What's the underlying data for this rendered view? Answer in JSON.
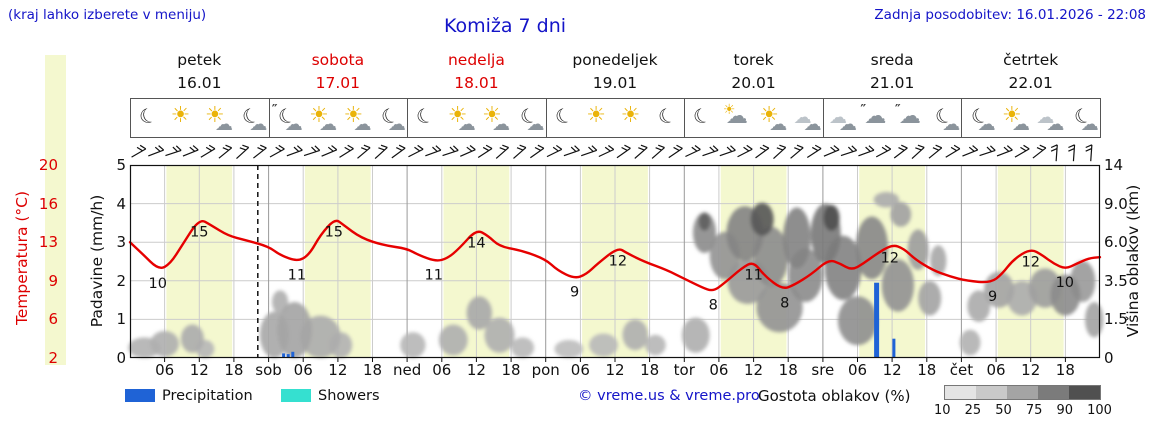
{
  "header": {
    "hint": "(kraj lahko izberete v meniju)",
    "title": "Komiža 7 dni",
    "updated": "Zadnja posodobitev: 16.01.2026 - 22:08"
  },
  "axes": {
    "left_temp": {
      "label": "Temperatura (°C)",
      "ticks": [
        "20",
        "16",
        "13",
        "9",
        "6",
        "2"
      ]
    },
    "left_precip": {
      "label": "Padavine (mm/h)",
      "ticks": [
        "5",
        "4",
        "3",
        "2",
        "1",
        "0"
      ]
    },
    "right_cloud": {
      "label": "Višina oblakov (km)",
      "ticks": [
        "14",
        "9.0",
        "6.0",
        "3.5",
        "1.5",
        "0"
      ]
    },
    "x_ticks": [
      {
        "h": 6,
        "label": "06"
      },
      {
        "h": 12,
        "label": "12"
      },
      {
        "h": 18,
        "label": "18"
      },
      {
        "h": 24,
        "label": "sob"
      },
      {
        "h": 30,
        "label": "06"
      },
      {
        "h": 36,
        "label": "12"
      },
      {
        "h": 42,
        "label": "18"
      },
      {
        "h": 48,
        "label": "ned"
      },
      {
        "h": 54,
        "label": "06"
      },
      {
        "h": 60,
        "label": "12"
      },
      {
        "h": 66,
        "label": "18"
      },
      {
        "h": 72,
        "label": "pon"
      },
      {
        "h": 78,
        "label": "06"
      },
      {
        "h": 84,
        "label": "12"
      },
      {
        "h": 90,
        "label": "18"
      },
      {
        "h": 96,
        "label": "tor"
      },
      {
        "h": 102,
        "label": "06"
      },
      {
        "h": 108,
        "label": "12"
      },
      {
        "h": 114,
        "label": "18"
      },
      {
        "h": 120,
        "label": "sre"
      },
      {
        "h": 126,
        "label": "06"
      },
      {
        "h": 132,
        "label": "12"
      },
      {
        "h": 138,
        "label": "18"
      },
      {
        "h": 144,
        "label": "čet"
      },
      {
        "h": 150,
        "label": "06"
      },
      {
        "h": 156,
        "label": "12"
      },
      {
        "h": 162,
        "label": "18"
      }
    ]
  },
  "days": [
    {
      "name": "petek",
      "date": "16.01",
      "weekend": false,
      "icons": [
        "moon",
        "sun",
        "sun-cloud",
        "moon-cloud"
      ]
    },
    {
      "name": "sobota",
      "date": "17.01",
      "weekend": true,
      "icons": [
        "moon-cloud-drizzle",
        "sun-cloud",
        "sun-cloud",
        "moon-cloud"
      ]
    },
    {
      "name": "nedelja",
      "date": "18.01",
      "weekend": true,
      "icons": [
        "moon",
        "sun-cloud",
        "sun-cloud",
        "moon-cloud"
      ]
    },
    {
      "name": "ponedeljek",
      "date": "19.01",
      "weekend": false,
      "icons": [
        "moon",
        "sun",
        "sun",
        "moon"
      ]
    },
    {
      "name": "torek",
      "date": "20.01",
      "weekend": false,
      "icons": [
        "moon",
        "cloud-sun",
        "sun-cloud",
        "clouds"
      ]
    },
    {
      "name": "sreda",
      "date": "21.01",
      "weekend": false,
      "icons": [
        "clouds",
        "cloud-drizzle",
        "cloud-drizzle",
        "moon-cloud"
      ]
    },
    {
      "name": "četrtek",
      "date": "22.01",
      "weekend": false,
      "icons": [
        "moon-cloud",
        "sun-cloud",
        "clouds",
        "moon-cloud"
      ]
    }
  ],
  "legend": {
    "precipitation": "Precipitation",
    "showers": "Showers",
    "copyright": "© vreme.us & vreme.pro",
    "cloud_density_label": "Gostota oblakov (%)",
    "cloud_density_ticks": [
      "10",
      "25",
      "50",
      "75",
      "90",
      "100"
    ]
  },
  "colors": {
    "blue_text": "#1414c8",
    "red": "#dd0000",
    "day_band": "#f4f8cf",
    "precipitation": "#1f63d6",
    "showers": "#35e0d0",
    "temperature_line": "#e60000"
  },
  "chart_data": {
    "type": "line",
    "title": "Komiža 7 dni",
    "x_unit": "hours from 16.01 00:00, 7 days",
    "x_range": [
      0,
      168
    ],
    "now_line_hour": 22.13,
    "daylight_band": {
      "start_offset_h": 6.3,
      "end_offset_h": 17.7
    },
    "temperature": {
      "unit": "°C",
      "axis_range": [
        2,
        20
      ],
      "points": [
        [
          0,
          12.8
        ],
        [
          2,
          11.8
        ],
        [
          5,
          10.2
        ],
        [
          7,
          10.8
        ],
        [
          9,
          12.5
        ],
        [
          12,
          15
        ],
        [
          14,
          14.4
        ],
        [
          17,
          13.4
        ],
        [
          20,
          13
        ],
        [
          24,
          12.4
        ],
        [
          26,
          11.6
        ],
        [
          29,
          11
        ],
        [
          31,
          11.6
        ],
        [
          33,
          13.5
        ],
        [
          35.5,
          15
        ],
        [
          37,
          14.4
        ],
        [
          40,
          13.2
        ],
        [
          44,
          12.5
        ],
        [
          48,
          12.2
        ],
        [
          50,
          11.6
        ],
        [
          53,
          11
        ],
        [
          55,
          11.3
        ],
        [
          57,
          12.2
        ],
        [
          60,
          14
        ],
        [
          62,
          13.4
        ],
        [
          64,
          12.4
        ],
        [
          68,
          12
        ],
        [
          72,
          11.2
        ],
        [
          74,
          10.2
        ],
        [
          77,
          9.4
        ],
        [
          79,
          9.8
        ],
        [
          81,
          10.8
        ],
        [
          84.5,
          12.3
        ],
        [
          86,
          11.8
        ],
        [
          89,
          11
        ],
        [
          93,
          10.2
        ],
        [
          96,
          9.4
        ],
        [
          99,
          8.6
        ],
        [
          101,
          8.2
        ],
        [
          103,
          9
        ],
        [
          106,
          10.4
        ],
        [
          108,
          11
        ],
        [
          110,
          9.6
        ],
        [
          113,
          8.4
        ],
        [
          115,
          8.8
        ],
        [
          118,
          9.8
        ],
        [
          121,
          11.2
        ],
        [
          123,
          10.8
        ],
        [
          125,
          10.2
        ],
        [
          127,
          10.8
        ],
        [
          129,
          11.6
        ],
        [
          132,
          12.6
        ],
        [
          134,
          12.2
        ],
        [
          136,
          11.2
        ],
        [
          139,
          10.2
        ],
        [
          142,
          9.6
        ],
        [
          145,
          9.2
        ],
        [
          149,
          9
        ],
        [
          151,
          9.8
        ],
        [
          153,
          11.2
        ],
        [
          156,
          12.2
        ],
        [
          158,
          11.6
        ],
        [
          160,
          10.8
        ],
        [
          162,
          10.3
        ],
        [
          164,
          10.8
        ],
        [
          166,
          11.3
        ],
        [
          168,
          11.4
        ]
      ],
      "labels": [
        {
          "h": 4.8,
          "t": 10.2,
          "text": "10"
        },
        {
          "h": 12,
          "t": 15,
          "text": "15"
        },
        {
          "h": 28.9,
          "t": 11,
          "text": "11"
        },
        {
          "h": 35.3,
          "t": 15,
          "text": "15"
        },
        {
          "h": 52.6,
          "t": 11,
          "text": "11"
        },
        {
          "h": 60,
          "t": 14,
          "text": "14"
        },
        {
          "h": 77,
          "t": 9.4,
          "text": "9"
        },
        {
          "h": 84.5,
          "t": 12.3,
          "text": "12"
        },
        {
          "h": 101,
          "t": 8.2,
          "text": "8"
        },
        {
          "h": 108,
          "t": 11,
          "text": "11"
        },
        {
          "h": 113.4,
          "t": 8.4,
          "text": "8"
        },
        {
          "h": 131.6,
          "t": 12.6,
          "text": "12"
        },
        {
          "h": 149.4,
          "t": 9,
          "text": "9"
        },
        {
          "h": 156,
          "t": 12.2,
          "text": "12"
        },
        {
          "h": 161.9,
          "t": 10.3,
          "text": "10"
        }
      ]
    },
    "precipitation": {
      "unit": "mm/h",
      "axis_range": [
        0,
        5
      ],
      "bars": [
        {
          "h": 26.6,
          "v": 0.12
        },
        {
          "h": 27.4,
          "v": 0.1
        },
        {
          "h": 28.2,
          "v": 0.16
        },
        {
          "h": 129.3,
          "v": 1.95
        },
        {
          "h": 132.3,
          "v": 0.5
        }
      ]
    },
    "cloud_height_axis": {
      "unit": "km",
      "ticks": [
        0,
        1.5,
        3.5,
        6,
        9,
        14
      ]
    },
    "cloud_blobs": [
      {
        "h": 2.5,
        "km": 0.35,
        "rh": 2.8,
        "rkm": 0.45,
        "d": 0.28
      },
      {
        "h": 6,
        "km": 0.55,
        "rh": 2.5,
        "rkm": 0.5,
        "d": 0.3
      },
      {
        "h": 10.8,
        "km": 0.75,
        "rh": 2,
        "rkm": 0.55,
        "d": 0.32
      },
      {
        "h": 13,
        "km": 0.35,
        "rh": 1.6,
        "rkm": 0.35,
        "d": 0.26
      },
      {
        "h": 25,
        "km": 0.9,
        "rh": 2.5,
        "rkm": 1,
        "d": 0.34
      },
      {
        "h": 28.5,
        "km": 1.2,
        "rh": 3,
        "rkm": 1.2,
        "d": 0.36
      },
      {
        "h": 33,
        "km": 0.8,
        "rh": 3.5,
        "rkm": 0.9,
        "d": 0.32
      },
      {
        "h": 26,
        "km": 2.4,
        "rh": 1.4,
        "rkm": 0.6,
        "d": 0.3
      },
      {
        "h": 36.5,
        "km": 0.5,
        "rh": 2,
        "rkm": 0.5,
        "d": 0.28
      },
      {
        "h": 49,
        "km": 0.5,
        "rh": 2.2,
        "rkm": 0.5,
        "d": 0.26
      },
      {
        "h": 56,
        "km": 0.7,
        "rh": 2.5,
        "rkm": 0.6,
        "d": 0.3
      },
      {
        "h": 60.5,
        "km": 1.9,
        "rh": 2.2,
        "rkm": 0.8,
        "d": 0.34
      },
      {
        "h": 64,
        "km": 0.9,
        "rh": 2.6,
        "rkm": 0.7,
        "d": 0.3
      },
      {
        "h": 68,
        "km": 0.4,
        "rh": 2,
        "rkm": 0.4,
        "d": 0.24
      },
      {
        "h": 76,
        "km": 0.35,
        "rh": 2.5,
        "rkm": 0.35,
        "d": 0.22
      },
      {
        "h": 82,
        "km": 0.5,
        "rh": 2.5,
        "rkm": 0.45,
        "d": 0.24
      },
      {
        "h": 87.5,
        "km": 0.9,
        "rh": 2.2,
        "rkm": 0.6,
        "d": 0.3
      },
      {
        "h": 91,
        "km": 0.5,
        "rh": 1.8,
        "rkm": 0.4,
        "d": 0.26
      },
      {
        "h": 98,
        "km": 0.9,
        "rh": 2.4,
        "rkm": 0.7,
        "d": 0.3
      },
      {
        "h": 99.5,
        "km": 6.8,
        "rh": 2,
        "rkm": 1.5,
        "d": 0.5
      },
      {
        "h": 99.5,
        "km": 7.6,
        "rh": 1,
        "rkm": 0.7,
        "d": 0.75
      },
      {
        "h": 103,
        "km": 5.2,
        "rh": 2.6,
        "rkm": 1.6,
        "d": 0.45
      },
      {
        "h": 106.5,
        "km": 6.8,
        "rh": 3.2,
        "rkm": 2,
        "d": 0.55
      },
      {
        "h": 109.5,
        "km": 7.8,
        "rh": 2,
        "rkm": 1.3,
        "d": 0.8
      },
      {
        "h": 107,
        "km": 3.6,
        "rh": 3.5,
        "rkm": 1.3,
        "d": 0.42
      },
      {
        "h": 111,
        "km": 5.2,
        "rh": 3,
        "rkm": 2,
        "d": 0.5
      },
      {
        "h": 112.5,
        "km": 2.2,
        "rh": 4,
        "rkm": 1.2,
        "d": 0.45
      },
      {
        "h": 115.5,
        "km": 6.5,
        "rh": 2.4,
        "rkm": 2.2,
        "d": 0.55
      },
      {
        "h": 117,
        "km": 4,
        "rh": 3,
        "rkm": 1.6,
        "d": 0.5
      },
      {
        "h": 120.5,
        "km": 6.8,
        "rh": 2.6,
        "rkm": 2.2,
        "d": 0.6
      },
      {
        "h": 121.5,
        "km": 7.9,
        "rh": 1.4,
        "rkm": 1,
        "d": 0.85
      },
      {
        "h": 123.5,
        "km": 4.5,
        "rh": 3.2,
        "rkm": 2,
        "d": 0.55
      },
      {
        "h": 126,
        "km": 1.6,
        "rh": 3.4,
        "rkm": 1.1,
        "d": 0.48
      },
      {
        "h": 128.5,
        "km": 5.8,
        "rh": 2.8,
        "rkm": 2.2,
        "d": 0.52
      },
      {
        "h": 131,
        "km": 9.6,
        "rh": 2.2,
        "rkm": 0.9,
        "d": 0.32
      },
      {
        "h": 133.5,
        "km": 8.2,
        "rh": 1.8,
        "rkm": 1,
        "d": 0.38
      },
      {
        "h": 133,
        "km": 3.4,
        "rh": 2.8,
        "rkm": 1.5,
        "d": 0.46
      },
      {
        "h": 136.5,
        "km": 5.6,
        "rh": 1.8,
        "rkm": 1.4,
        "d": 0.4
      },
      {
        "h": 138.5,
        "km": 2.6,
        "rh": 2,
        "rkm": 0.9,
        "d": 0.36
      },
      {
        "h": 140,
        "km": 4.8,
        "rh": 1.4,
        "rkm": 1,
        "d": 0.34
      },
      {
        "h": 145.5,
        "km": 0.6,
        "rh": 1.8,
        "rkm": 0.5,
        "d": 0.28
      },
      {
        "h": 147,
        "km": 2.2,
        "rh": 2,
        "rkm": 0.8,
        "d": 0.32
      },
      {
        "h": 150.5,
        "km": 3.1,
        "rh": 2.6,
        "rkm": 1,
        "d": 0.36
      },
      {
        "h": 154.5,
        "km": 2.6,
        "rh": 2.6,
        "rkm": 0.9,
        "d": 0.32
      },
      {
        "h": 158.5,
        "km": 3.2,
        "rh": 2.8,
        "rkm": 1.1,
        "d": 0.4
      },
      {
        "h": 162,
        "km": 2.8,
        "rh": 2.6,
        "rkm": 1.1,
        "d": 0.5
      },
      {
        "h": 165,
        "km": 3.6,
        "rh": 2.2,
        "rkm": 1.2,
        "d": 0.42
      },
      {
        "h": 167,
        "km": 1.6,
        "rh": 1.6,
        "rkm": 0.8,
        "d": 0.36
      }
    ],
    "wind_barb_count": 56
  }
}
